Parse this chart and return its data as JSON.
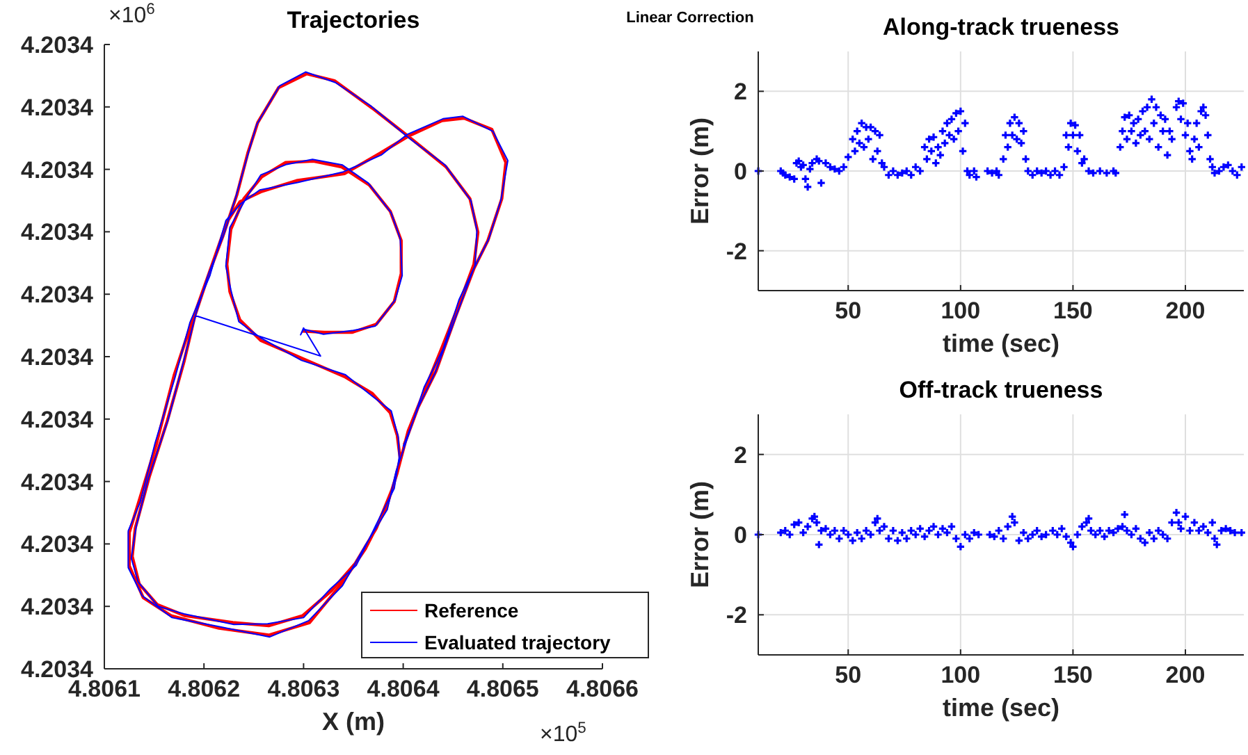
{
  "chart_data": [
    {
      "type": "line",
      "title": "Trajectories",
      "xlabel": "X (m)",
      "xlim": [
        4.8061,
        4.8066
      ],
      "xticks": [
        4.8061,
        4.8062,
        4.8063,
        4.8064,
        4.8065,
        4.8066
      ],
      "ylim": [
        4.20335,
        4.20345
      ],
      "yticks": [
        {
          "value": 4.20335,
          "label": "4.2034"
        },
        {
          "value": 4.20336,
          "label": "4.2034"
        },
        {
          "value": 4.20337,
          "label": "4.2034"
        },
        {
          "value": 4.20338,
          "label": "4.2034"
        },
        {
          "value": 4.20339,
          "label": "4.2034"
        },
        {
          "value": 4.2034,
          "label": "4.2034"
        },
        {
          "value": 4.20341,
          "label": "4.2034"
        },
        {
          "value": 4.20342,
          "label": "4.2034"
        },
        {
          "value": 4.20343,
          "label": "4.2034"
        },
        {
          "value": 4.20344,
          "label": "4.2034"
        },
        {
          "value": 4.20345,
          "label": "4.2034"
        }
      ],
      "legend": "bottom right",
      "annotations": [
        "×10$^{6}$",
        "×10$^{5}$",
        "Linear Correction"
      ],
      "series": [
        {
          "name": "Reference",
          "color": "#ff0000",
          "x": [
            4.806299,
            4.806321,
            4.806349,
            4.806373,
            4.806391,
            4.806398,
            4.806398,
            4.806387,
            4.806366,
            4.806338,
            4.80631,
            4.806282,
            4.806258,
            4.80624,
            4.806227,
            4.806223,
            4.806226,
            4.806236,
            4.806257,
            4.806299,
            4.806341,
            4.806369,
            4.806387,
            4.806394,
            4.806397,
            4.80639,
            4.806373,
            4.806352,
            4.806328,
            4.806299,
            4.806265,
            4.806229,
            4.806181,
            4.806153,
            4.806135,
            4.806128,
            4.806131,
            4.806145,
            4.806163,
            4.80618,
            4.806191,
            4.806205,
            4.806219,
            4.806233,
            4.806244,
            4.806254,
            4.806275,
            4.806303,
            4.806331,
            4.806369,
            4.806405,
            4.806443,
            4.806467,
            4.806475,
            4.806471,
            4.806457,
            4.806439,
            4.806422,
            4.806405,
            4.806394,
            4.806383,
            4.806362,
            4.806338,
            4.806306,
            4.806265,
            4.806215,
            4.806167,
            4.806139,
            4.806125,
            4.806125,
            4.806135,
            4.806152,
            4.80617,
            4.806187,
            4.806205,
            4.806223,
            4.806236,
            4.806257,
            4.806293,
            4.806341,
            4.806377,
            4.806405,
            4.806439,
            4.806461,
            4.806489,
            4.806503,
            4.806499,
            4.806485,
            4.806471,
            4.806453,
            4.806433,
            4.806415,
            4.806401
          ],
          "values": [
            4.2034041,
            4.2034039,
            4.2034039,
            4.2034052,
            4.2034088,
            4.2034133,
            4.2034186,
            4.2034233,
            4.2034275,
            4.2034304,
            4.2034313,
            4.2034311,
            4.2034288,
            4.2034253,
            4.2034204,
            4.2034148,
            4.2034104,
            4.2034059,
            4.2034026,
            4.2033997,
            4.2033968,
            4.2033941,
            4.203391,
            4.2033874,
            4.2033836,
            4.2033792,
            4.2033725,
            4.2033669,
            4.2033625,
            4.2033585,
            4.2033569,
            4.2033574,
            4.2033585,
            4.2033603,
            4.2033636,
            4.203368,
            4.2033725,
            4.2033807,
            4.2033896,
            4.2033992,
            4.2034066,
            4.2034133,
            4.2034193,
            4.2034259,
            4.2034326,
            4.2034375,
            4.2034431,
            4.2034453,
            4.2034442,
            4.2034398,
            4.2034353,
            4.2034304,
            4.2034253,
            4.2034199,
            4.2034148,
            4.2034088,
            4.2034015,
            4.2033948,
            4.2033881,
            4.2033814,
            4.2033758,
            4.2033692,
            4.2033636,
            4.2033574,
            4.2033554,
            4.2033565,
            4.2033585,
            4.2033614,
            4.2033665,
            4.2033718,
            4.203377,
            4.2033859,
            4.203397,
            4.2034052,
            4.2034133,
            4.2034215,
            4.2034248,
            4.2034264,
            4.2034282,
            4.2034293,
            4.2034326,
            4.2034353,
            4.2034378,
            4.2034382,
            4.2034364,
            4.2034311,
            4.2034253,
            4.2034186,
            4.2034141,
            4.2034066,
            4.2033977,
            4.2033919,
            4.2033859
          ]
        },
        {
          "name": "Evaluated trajectory",
          "color": "#0000ff",
          "x": [
            4.806191,
            4.806317,
            4.8063,
            4.806297,
            4.8063,
            4.80632,
            4.80635,
            4.806372,
            4.806392,
            4.806399,
            4.806397,
            4.806388,
            4.806365,
            4.806339,
            4.806309,
            4.806283,
            4.806257,
            4.806241,
            4.806226,
            4.806222,
            4.806227,
            4.806235,
            4.806258,
            4.806298,
            4.806342,
            4.806368,
            4.806388,
            4.806395,
            4.806396,
            4.806391,
            4.806372,
            4.806353,
            4.806327,
            4.8063,
            4.806264,
            4.80623,
            4.80618,
            4.806154,
            4.806134,
            4.806127,
            4.806132,
            4.806144,
            4.806164,
            4.806179,
            4.806192,
            4.806204,
            4.80622,
            4.806232,
            4.806245,
            4.806253,
            4.806276,
            4.806302,
            4.806332,
            4.806368,
            4.806406,
            4.806442,
            4.806468,
            4.806474,
            4.806472,
            4.806456,
            4.80644,
            4.806421,
            4.806406,
            4.806393,
            4.806384,
            4.806361,
            4.806339,
            4.806305,
            4.806266,
            4.806214,
            4.806168,
            4.806138,
            4.806124,
            4.806124,
            4.806136,
            4.806151,
            4.806171,
            4.806186,
            4.806206,
            4.806222,
            4.806237,
            4.806256,
            4.806294,
            4.80634,
            4.806378,
            4.806404,
            4.80644,
            4.80646,
            4.80649,
            4.806505,
            4.806498,
            4.806486,
            4.80647,
            4.806454,
            4.806432,
            4.806416,
            4.8064
          ],
          "values": [
            4.2034066,
            4.2034001,
            4.2034046,
            4.2034035,
            4.2034044,
            4.2034036,
            4.2034042,
            4.2034049,
            4.2034091,
            4.203413,
            4.2034189,
            4.203423,
            4.2034278,
            4.2034307,
            4.2034316,
            4.2034308,
            4.2034291,
            4.203425,
            4.2034207,
            4.2034145,
            4.2034107,
            4.2034056,
            4.2034029,
            4.2033994,
            4.2033971,
            4.2033938,
            4.2033913,
            4.2033871,
            4.2033839,
            4.2033789,
            4.2033728,
            4.2033666,
            4.2033628,
            4.2033582,
            4.2033572,
            4.2033571,
            4.2033588,
            4.20336,
            4.2033639,
            4.2033677,
            4.2033728,
            4.2033804,
            4.2033899,
            4.2033989,
            4.2034069,
            4.203413,
            4.2034196,
            4.2034256,
            4.2034329,
            4.2034372,
            4.2034434,
            4.2034456,
            4.2034439,
            4.2034401,
            4.203435,
            4.2034307,
            4.203425,
            4.2034202,
            4.2034145,
            4.2034091,
            4.2034012,
            4.2033951,
            4.2033878,
            4.2033817,
            4.2033755,
            4.2033695,
            4.2033633,
            4.2033577,
            4.2033551,
            4.2033568,
            4.2033582,
            4.2033617,
            4.2033662,
            4.2033721,
            4.2033767,
            4.2033862,
            4.2033967,
            4.2034055,
            4.203413,
            4.2034218,
            4.2034245,
            4.2034267,
            4.2034279,
            4.2034296,
            4.2034323,
            4.2034356,
            4.2034381,
            4.2034385,
            4.2034361,
            4.2034314,
            4.203425,
            4.2034189,
            4.2034138,
            4.2034069,
            4.2033974,
            4.2033922,
            4.2033856
          ]
        }
      ]
    },
    {
      "type": "scatter",
      "title": "Along-track trueness",
      "xlabel": "time (sec)",
      "ylabel": "Error (m)",
      "xlim": [
        10,
        226
      ],
      "xticks": [
        50,
        100,
        150,
        200
      ],
      "ylim": [
        -3,
        3
      ],
      "yticks": [
        -2,
        0,
        2
      ],
      "grid": true,
      "marker": "cross",
      "color": "#0000ff",
      "x": [
        10,
        20,
        21,
        22,
        24,
        26,
        27,
        28,
        29,
        30,
        31,
        32,
        33,
        34,
        36,
        37,
        38,
        40,
        42,
        44,
        46,
        48,
        50,
        52,
        53,
        54,
        55,
        56,
        57,
        58,
        59,
        60,
        61,
        62,
        63,
        64,
        65,
        66,
        68,
        70,
        72,
        74,
        76,
        78,
        80,
        82,
        84,
        85,
        86,
        87,
        88,
        89,
        90,
        91,
        92,
        93,
        94,
        95,
        96,
        97,
        98,
        99,
        100,
        101,
        102,
        103,
        104,
        106,
        107,
        112,
        114,
        116,
        117,
        119,
        120,
        121,
        122,
        123,
        124,
        125,
        126,
        127,
        128,
        129,
        130,
        132,
        134,
        136,
        138,
        140,
        142,
        144,
        146,
        147,
        148,
        149,
        150,
        151,
        152,
        153,
        154,
        155,
        157,
        159,
        162,
        165,
        168,
        169,
        171,
        172,
        173,
        174,
        175,
        176,
        177,
        178,
        179,
        180,
        181,
        182,
        183,
        184,
        185,
        186,
        187,
        188,
        189,
        190,
        191,
        192,
        193,
        194,
        196,
        197,
        198,
        199,
        200,
        201,
        202,
        203,
        204,
        205,
        206,
        207,
        208,
        209,
        210,
        211,
        212,
        213,
        215,
        217,
        219,
        221,
        223,
        225
      ],
      "values": [
        0,
        0,
        -0.05,
        -0.1,
        -0.15,
        -0.2,
        0.2,
        0.25,
        0.1,
        0.15,
        -0.2,
        -0.4,
        0.05,
        0.2,
        0.3,
        0.25,
        -0.3,
        0.2,
        0.1,
        0.05,
        0,
        0.1,
        0.35,
        0.8,
        0.5,
        1,
        0.7,
        1.2,
        0.6,
        1.1,
        0.8,
        1.1,
        0.3,
        1,
        0.5,
        0.9,
        0.2,
        0.1,
        -0.1,
        0,
        -0.1,
        -0.05,
        0,
        -0.1,
        0.1,
        0,
        0.6,
        0.3,
        0.8,
        0.5,
        0.85,
        0.2,
        0.6,
        0.4,
        1,
        0.7,
        1.2,
        0.9,
        1.3,
        0.8,
        1.45,
        1,
        1.5,
        0.5,
        1.2,
        0,
        -0.1,
        0,
        -0.15,
        0,
        -0.05,
        0,
        -0.1,
        0.3,
        0.9,
        0.6,
        1.2,
        0.9,
        1.35,
        0.8,
        1.2,
        0.7,
        1,
        0.3,
        0,
        -0.1,
        0,
        -0.05,
        0,
        -0.1,
        0,
        -0.1,
        0.1,
        0.9,
        0.6,
        1.2,
        0.9,
        1.15,
        0.5,
        0.9,
        0.2,
        0.3,
        0,
        -0.05,
        0,
        -0.05,
        0,
        -0.05,
        0.6,
        1,
        1.35,
        0.8,
        1.4,
        1,
        1.2,
        0.7,
        1.3,
        0.9,
        1.5,
        1,
        1.6,
        0.8,
        1.8,
        1.2,
        1.6,
        0.6,
        1.4,
        1,
        1.3,
        0.4,
        1,
        0.8,
        1.6,
        1.75,
        1.3,
        1.7,
        0.9,
        1.2,
        0.5,
        0.3,
        0.8,
        1.2,
        0.6,
        1.5,
        1.6,
        1.4,
        0.9,
        0.3,
        0.1,
        -0.05,
        0,
        0.1,
        0.15,
        0,
        -0.1,
        0.1
      ]
    },
    {
      "type": "scatter",
      "title": "Off-track trueness",
      "xlabel": "time (sec)",
      "ylabel": "Error (m)",
      "xlim": [
        10,
        226
      ],
      "xticks": [
        50,
        100,
        150,
        200
      ],
      "ylim": [
        -3,
        3
      ],
      "yticks": [
        -2,
        0,
        2
      ],
      "grid": true,
      "marker": "cross",
      "color": "#0000ff",
      "x": [
        10,
        20,
        22,
        24,
        26,
        28,
        30,
        32,
        34,
        35,
        36,
        37,
        38,
        40,
        42,
        44,
        46,
        48,
        50,
        52,
        54,
        56,
        58,
        60,
        62,
        63,
        64,
        66,
        68,
        70,
        72,
        74,
        76,
        78,
        80,
        82,
        84,
        86,
        88,
        90,
        92,
        94,
        96,
        98,
        100,
        102,
        104,
        106,
        108,
        113,
        115,
        117,
        119,
        121,
        123,
        124,
        126,
        128,
        130,
        132,
        134,
        136,
        138,
        141,
        143,
        145,
        147,
        149,
        150,
        152,
        154,
        156,
        157,
        158,
        160,
        162,
        164,
        166,
        168,
        170,
        172,
        173,
        174,
        176,
        178,
        180,
        182,
        184,
        186,
        188,
        190,
        192,
        194,
        196,
        197,
        198,
        200,
        202,
        204,
        206,
        208,
        210,
        212,
        213,
        214,
        216,
        218,
        220,
        222,
        225
      ],
      "values": [
        0,
        0.05,
        0.1,
        0,
        0.25,
        0.3,
        0.05,
        0.2,
        0.4,
        0.45,
        0.3,
        -0.25,
        0.1,
        0.15,
        0,
        0.1,
        -0.1,
        0.1,
        0,
        -0.15,
        0.05,
        -0.1,
        0.1,
        0,
        0.3,
        0.4,
        0.1,
        0.2,
        -0.1,
        0.1,
        -0.15,
        0.05,
        -0.1,
        0.1,
        0,
        0.15,
        -0.05,
        0.1,
        0.2,
        0,
        0.15,
        0.05,
        0.2,
        -0.1,
        -0.3,
        0,
        -0.1,
        0.05,
        0,
        0,
        -0.05,
        0.1,
        -0.1,
        0.2,
        0.45,
        0.3,
        -0.15,
        0.05,
        -0.1,
        0,
        0.1,
        -0.05,
        0,
        0.1,
        0,
        0.15,
        -0.05,
        -0.2,
        -0.3,
        0,
        0.2,
        0.3,
        0.4,
        0.1,
        0,
        0.1,
        -0.05,
        0.1,
        0.05,
        0.15,
        0.2,
        0.5,
        0.1,
        0,
        0.15,
        -0.1,
        -0.2,
        0.05,
        -0.1,
        0.1,
        0,
        -0.1,
        0.3,
        0.55,
        0.3,
        0.15,
        0.45,
        0.1,
        0.3,
        0.1,
        0.2,
        0.05,
        0.3,
        -0.1,
        -0.25,
        0.1,
        0.15,
        0.1,
        0.05,
        0.05
      ]
    }
  ]
}
